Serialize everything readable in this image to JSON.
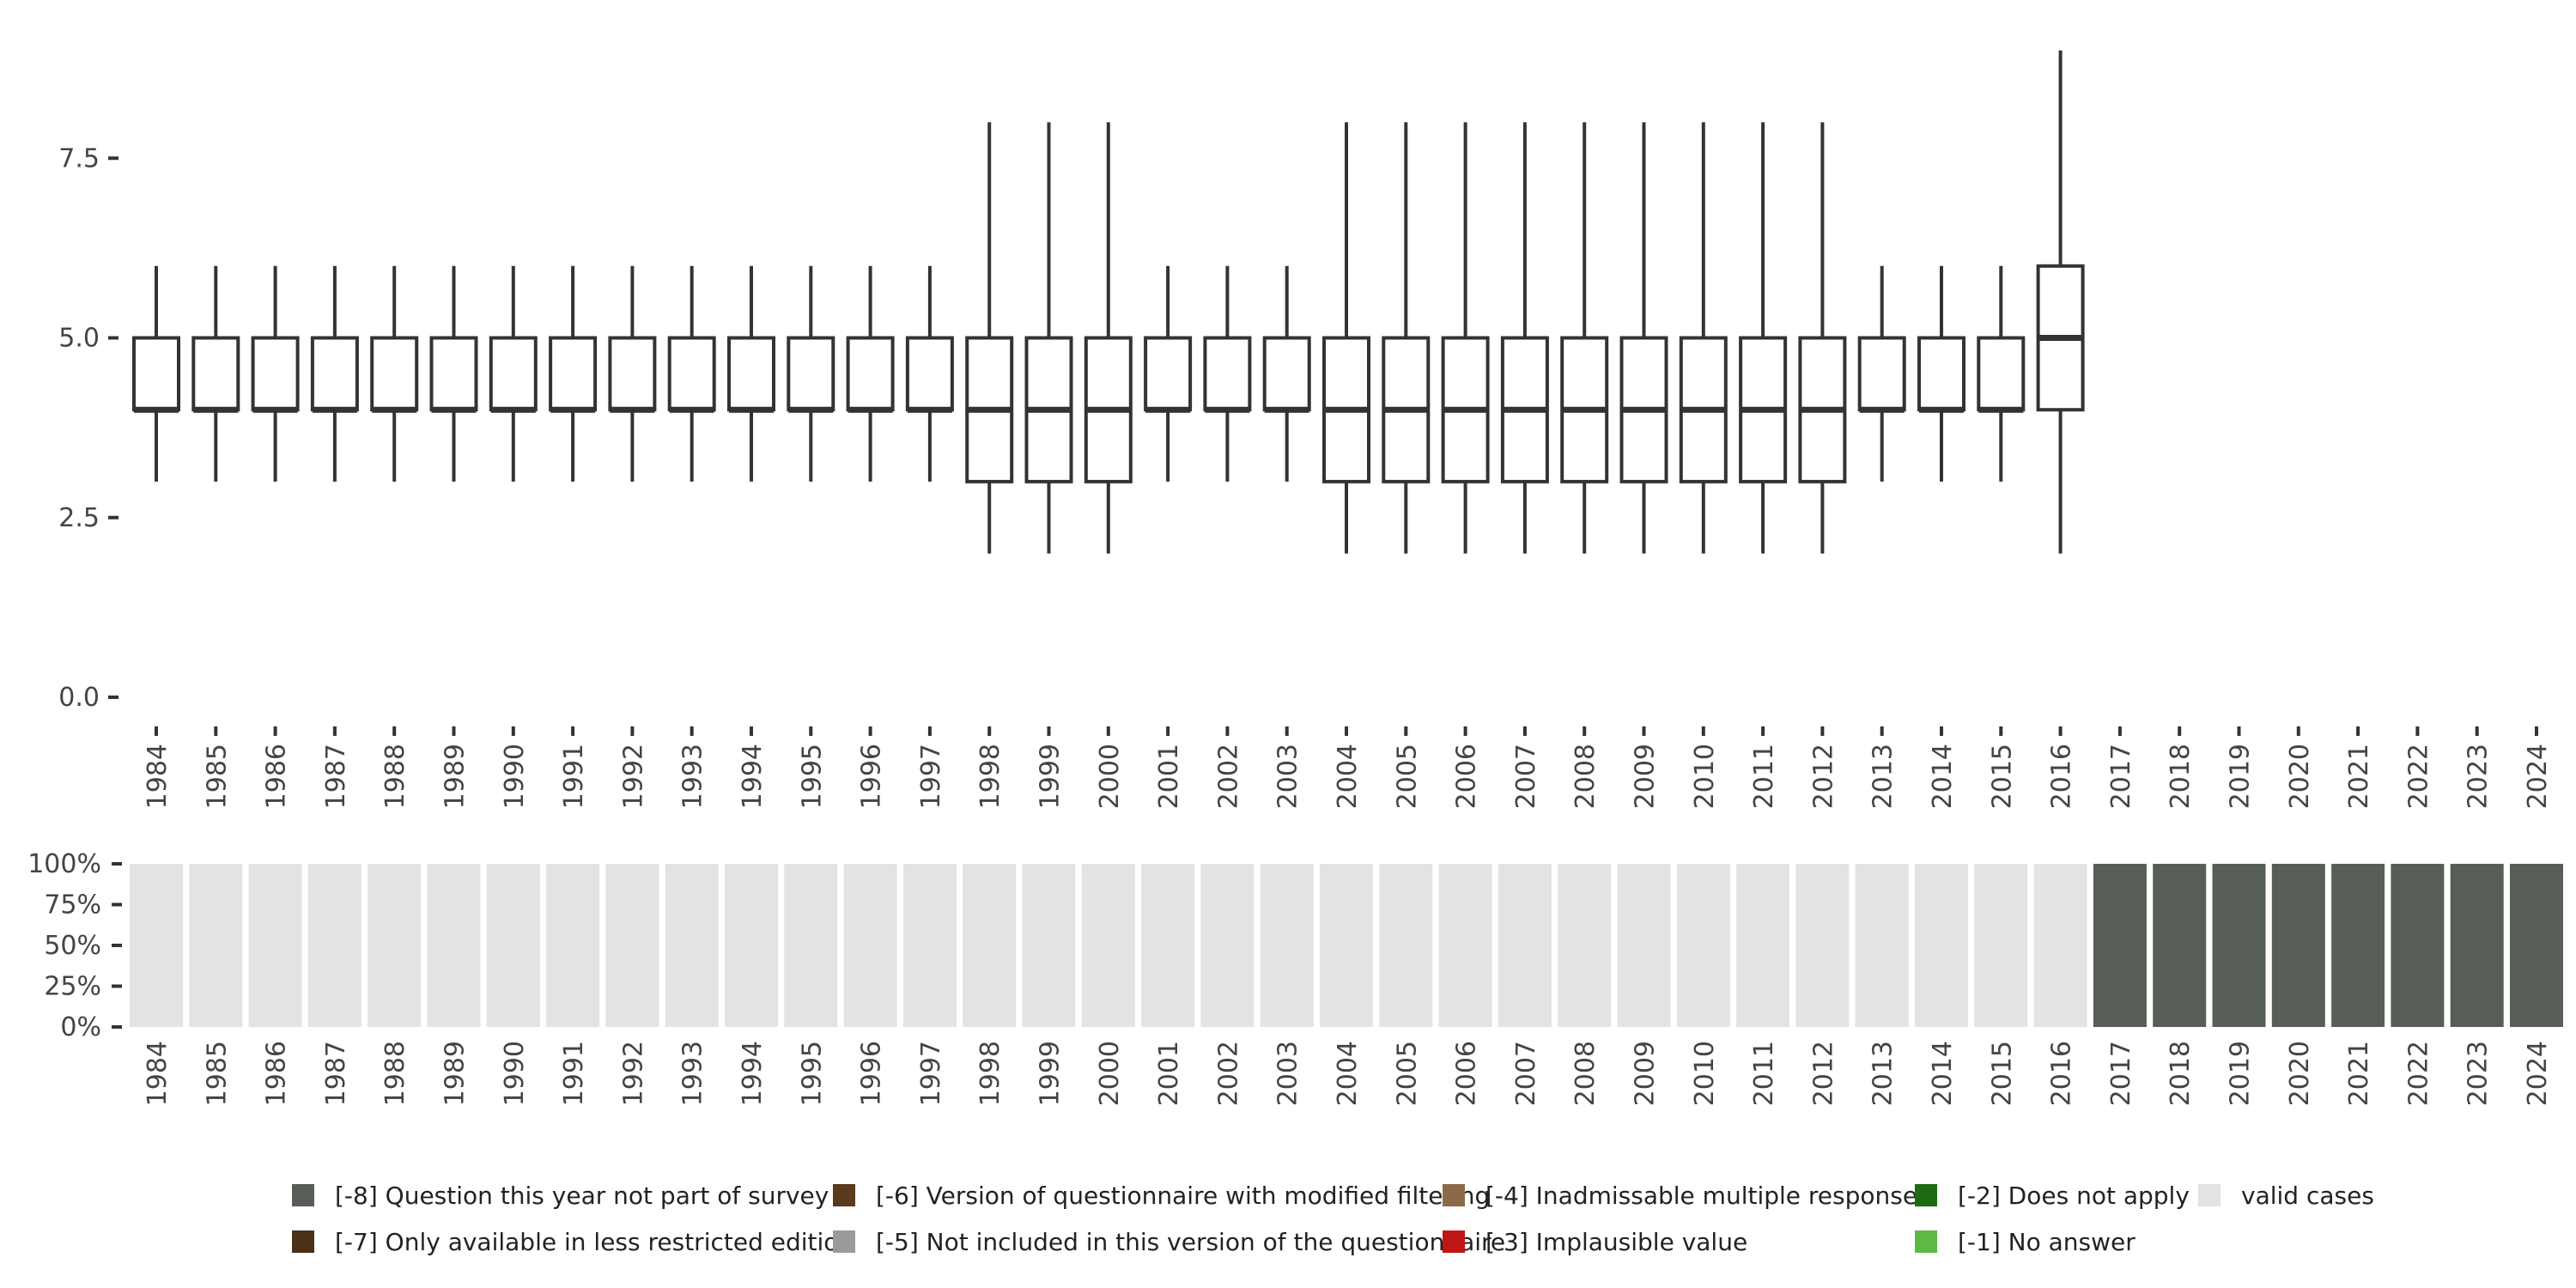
{
  "chart_data": [
    {
      "type": "boxplot",
      "ylim": [
        0,
        9
      ],
      "yticks": [
        "0.0",
        "2.5",
        "5.0",
        "7.5"
      ],
      "ytick_values": [
        0,
        2.5,
        5,
        7.5
      ],
      "categories": [
        "1984",
        "1985",
        "1986",
        "1987",
        "1988",
        "1989",
        "1990",
        "1991",
        "1992",
        "1993",
        "1994",
        "1995",
        "1996",
        "1997",
        "1998",
        "1999",
        "2000",
        "2001",
        "2002",
        "2003",
        "2004",
        "2005",
        "2006",
        "2007",
        "2008",
        "2009",
        "2010",
        "2011",
        "2012",
        "2013",
        "2014",
        "2015",
        "2016",
        "2017",
        "2018",
        "2019",
        "2020",
        "2021",
        "2022",
        "2023",
        "2024"
      ],
      "boxes": [
        {
          "year": "1984",
          "min": 3,
          "q1": 4,
          "median": 4,
          "q3": 5,
          "max": 6
        },
        {
          "year": "1985",
          "min": 3,
          "q1": 4,
          "median": 4,
          "q3": 5,
          "max": 6
        },
        {
          "year": "1986",
          "min": 3,
          "q1": 4,
          "median": 4,
          "q3": 5,
          "max": 6
        },
        {
          "year": "1987",
          "min": 3,
          "q1": 4,
          "median": 4,
          "q3": 5,
          "max": 6
        },
        {
          "year": "1988",
          "min": 3,
          "q1": 4,
          "median": 4,
          "q3": 5,
          "max": 6
        },
        {
          "year": "1989",
          "min": 3,
          "q1": 4,
          "median": 4,
          "q3": 5,
          "max": 6
        },
        {
          "year": "1990",
          "min": 3,
          "q1": 4,
          "median": 4,
          "q3": 5,
          "max": 6
        },
        {
          "year": "1991",
          "min": 3,
          "q1": 4,
          "median": 4,
          "q3": 5,
          "max": 6
        },
        {
          "year": "1992",
          "min": 3,
          "q1": 4,
          "median": 4,
          "q3": 5,
          "max": 6
        },
        {
          "year": "1993",
          "min": 3,
          "q1": 4,
          "median": 4,
          "q3": 5,
          "max": 6
        },
        {
          "year": "1994",
          "min": 3,
          "q1": 4,
          "median": 4,
          "q3": 5,
          "max": 6
        },
        {
          "year": "1995",
          "min": 3,
          "q1": 4,
          "median": 4,
          "q3": 5,
          "max": 6
        },
        {
          "year": "1996",
          "min": 3,
          "q1": 4,
          "median": 4,
          "q3": 5,
          "max": 6
        },
        {
          "year": "1997",
          "min": 3,
          "q1": 4,
          "median": 4,
          "q3": 5,
          "max": 6
        },
        {
          "year": "1998",
          "min": 2,
          "q1": 3,
          "median": 4,
          "q3": 5,
          "max": 8
        },
        {
          "year": "1999",
          "min": 2,
          "q1": 3,
          "median": 4,
          "q3": 5,
          "max": 8
        },
        {
          "year": "2000",
          "min": 2,
          "q1": 3,
          "median": 4,
          "q3": 5,
          "max": 8
        },
        {
          "year": "2001",
          "min": 3,
          "q1": 4,
          "median": 4,
          "q3": 5,
          "max": 6
        },
        {
          "year": "2002",
          "min": 3,
          "q1": 4,
          "median": 4,
          "q3": 5,
          "max": 6
        },
        {
          "year": "2003",
          "min": 3,
          "q1": 4,
          "median": 4,
          "q3": 5,
          "max": 6
        },
        {
          "year": "2004",
          "min": 2,
          "q1": 3,
          "median": 4,
          "q3": 5,
          "max": 8
        },
        {
          "year": "2005",
          "min": 2,
          "q1": 3,
          "median": 4,
          "q3": 5,
          "max": 8
        },
        {
          "year": "2006",
          "min": 2,
          "q1": 3,
          "median": 4,
          "q3": 5,
          "max": 8
        },
        {
          "year": "2007",
          "min": 2,
          "q1": 3,
          "median": 4,
          "q3": 5,
          "max": 8
        },
        {
          "year": "2008",
          "min": 2,
          "q1": 3,
          "median": 4,
          "q3": 5,
          "max": 8
        },
        {
          "year": "2009",
          "min": 2,
          "q1": 3,
          "median": 4,
          "q3": 5,
          "max": 8
        },
        {
          "year": "2010",
          "min": 2,
          "q1": 3,
          "median": 4,
          "q3": 5,
          "max": 8
        },
        {
          "year": "2011",
          "min": 2,
          "q1": 3,
          "median": 4,
          "q3": 5,
          "max": 8
        },
        {
          "year": "2012",
          "min": 2,
          "q1": 3,
          "median": 4,
          "q3": 5,
          "max": 8
        },
        {
          "year": "2013",
          "min": 3,
          "q1": 4,
          "median": 4,
          "q3": 5,
          "max": 6
        },
        {
          "year": "2014",
          "min": 3,
          "q1": 4,
          "median": 4,
          "q3": 5,
          "max": 6
        },
        {
          "year": "2015",
          "min": 3,
          "q1": 4,
          "median": 4,
          "q3": 5,
          "max": 6
        },
        {
          "year": "2016",
          "min": 2,
          "q1": 4,
          "median": 5,
          "q3": 6,
          "max": 9
        }
      ]
    },
    {
      "type": "bar",
      "stacked": true,
      "percent": true,
      "ylim": [
        0,
        100
      ],
      "yticks": [
        "0%",
        "25%",
        "50%",
        "75%",
        "100%"
      ],
      "ytick_values": [
        0,
        25,
        50,
        75,
        100
      ],
      "categories": [
        "1984",
        "1985",
        "1986",
        "1987",
        "1988",
        "1989",
        "1990",
        "1991",
        "1992",
        "1993",
        "1994",
        "1995",
        "1996",
        "1997",
        "1998",
        "1999",
        "2000",
        "2001",
        "2002",
        "2003",
        "2004",
        "2005",
        "2006",
        "2007",
        "2008",
        "2009",
        "2010",
        "2011",
        "2012",
        "2013",
        "2014",
        "2015",
        "2016",
        "2017",
        "2018",
        "2019",
        "2020",
        "2021",
        "2022",
        "2023",
        "2024"
      ],
      "series": [
        {
          "name": "valid cases",
          "color": "#e1e4e1",
          "values": [
            100,
            100,
            100,
            100,
            100,
            100,
            100,
            100,
            100,
            100,
            100,
            100,
            100,
            100,
            100,
            100,
            100,
            100,
            100,
            100,
            100,
            100,
            100,
            100,
            100,
            100,
            100,
            100,
            100,
            100,
            100,
            100,
            100,
            0,
            0,
            0,
            0,
            0,
            0,
            0,
            0
          ]
        },
        {
          "name": "[-8] Question this year not part of survey",
          "color": "#575e58",
          "values": [
            0,
            0,
            0,
            0,
            0,
            0,
            0,
            0,
            0,
            0,
            0,
            0,
            0,
            0,
            0,
            0,
            0,
            0,
            0,
            0,
            0,
            0,
            0,
            0,
            0,
            0,
            0,
            0,
            0,
            0,
            0,
            0,
            0,
            100,
            100,
            100,
            100,
            100,
            100,
            100,
            100
          ]
        }
      ],
      "legend": [
        {
          "label": "[-8] Question this year not part of survey",
          "color": "#575e58"
        },
        {
          "label": "[-6] Version of questionnaire with modified filtering",
          "color": "#5b3a1d"
        },
        {
          "label": "[-4] Inadmissable multiple response",
          "color": "#8c6a48"
        },
        {
          "label": "[-2] Does not apply",
          "color": "#1e6a12"
        },
        {
          "label": "valid cases",
          "color": "#e1e4e1"
        },
        {
          "label": "[-7] Only available in less restricted edition",
          "color": "#4a3118"
        },
        {
          "label": "[-5] Not included in this version of the questionnaire",
          "color": "#9a9a9a"
        },
        {
          "label": "[-3] Implausible value",
          "color": "#c01515"
        },
        {
          "label": "[-1] No answer",
          "color": "#5dbb45"
        }
      ],
      "legend_placement": "bottom"
    }
  ]
}
